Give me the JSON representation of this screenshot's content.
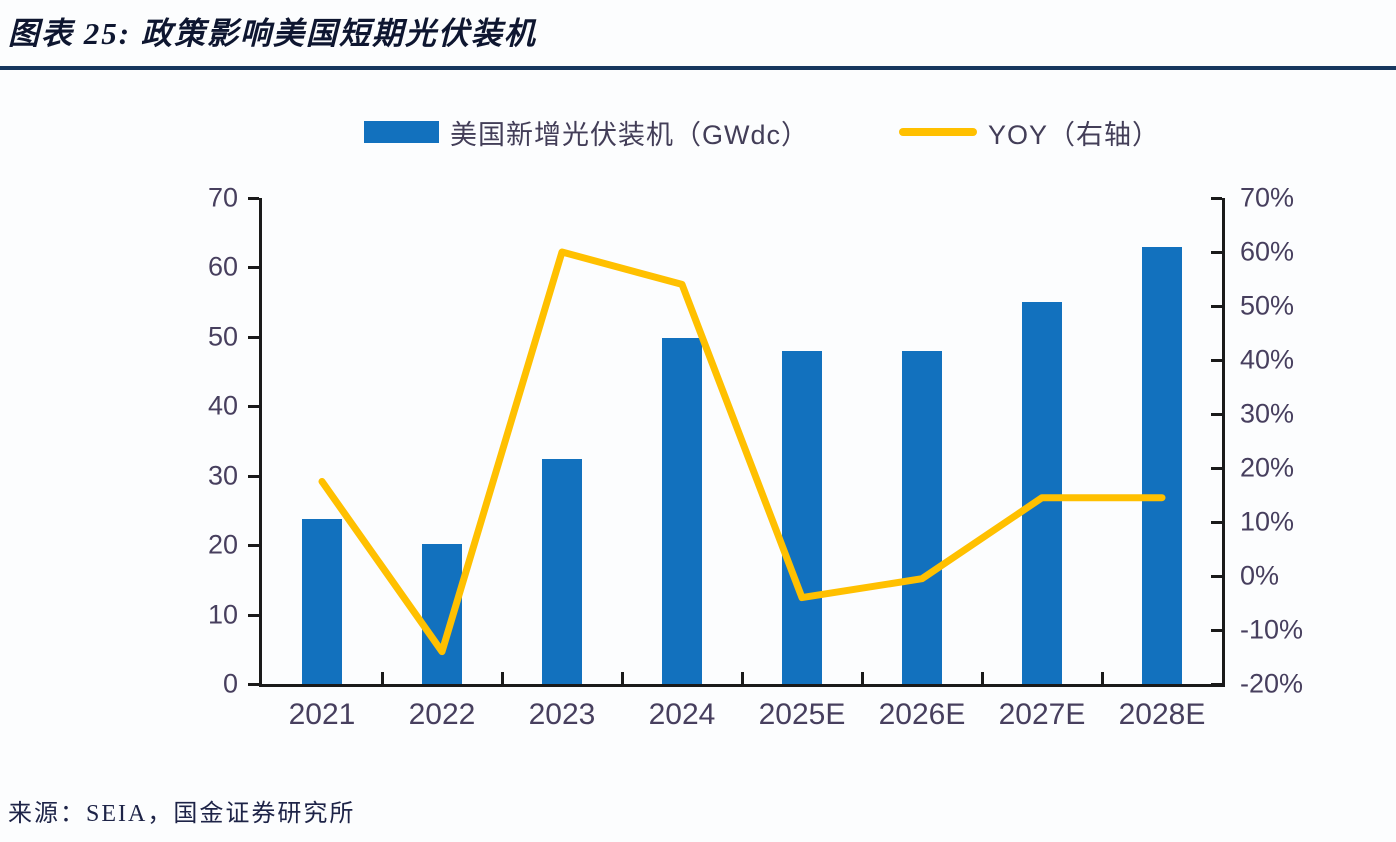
{
  "header": {
    "title": "图表 25: 政策影响美国短期光伏装机"
  },
  "legend": {
    "items": [
      {
        "label": "美国新增光伏装机（GWdc）",
        "swatch": "bar-swatch",
        "color": "#1271BE"
      },
      {
        "label": "YOY（右轴）",
        "swatch": "line-swatch",
        "color": "#FFC000"
      }
    ]
  },
  "source": "来源：SEIA，国金证券研究所",
  "colors": {
    "bar": "#1271BE",
    "line": "#FFC000",
    "divider": "#17375E",
    "title_text": "#0E1630",
    "axis_text": "#473F5E",
    "axis_line": "#1A1A1A",
    "background": "#FCFDFE"
  },
  "chart_data": {
    "type": "combo",
    "categories": [
      "2021",
      "2022",
      "2023",
      "2024",
      "2025E",
      "2026E",
      "2027E",
      "2028E"
    ],
    "series": [
      {
        "name": "美国新增光伏装机（GWdc）",
        "type": "bar",
        "axis": "left",
        "unit": "GWdc",
        "values": [
          23.7,
          20.1,
          32.4,
          49.9,
          48,
          48,
          55,
          63
        ]
      },
      {
        "name": "YOY（右轴）",
        "type": "line",
        "axis": "right",
        "unit": "%",
        "values": [
          17.5,
          -14,
          60,
          54,
          -4,
          -0.5,
          14.5,
          14.5
        ]
      }
    ],
    "left_axis": {
      "min": 0,
      "max": 70,
      "step": 10,
      "ticks": [
        "0",
        "10",
        "20",
        "30",
        "40",
        "50",
        "60",
        "70"
      ]
    },
    "right_axis": {
      "min": -20,
      "max": 70,
      "step": 10,
      "ticks": [
        "-20%",
        "-10%",
        "0%",
        "10%",
        "20%",
        "30%",
        "40%",
        "50%",
        "60%",
        "70%"
      ]
    },
    "grid": false,
    "legend_position": "top",
    "title": "图表 25: 政策影响美国短期光伏装机"
  }
}
